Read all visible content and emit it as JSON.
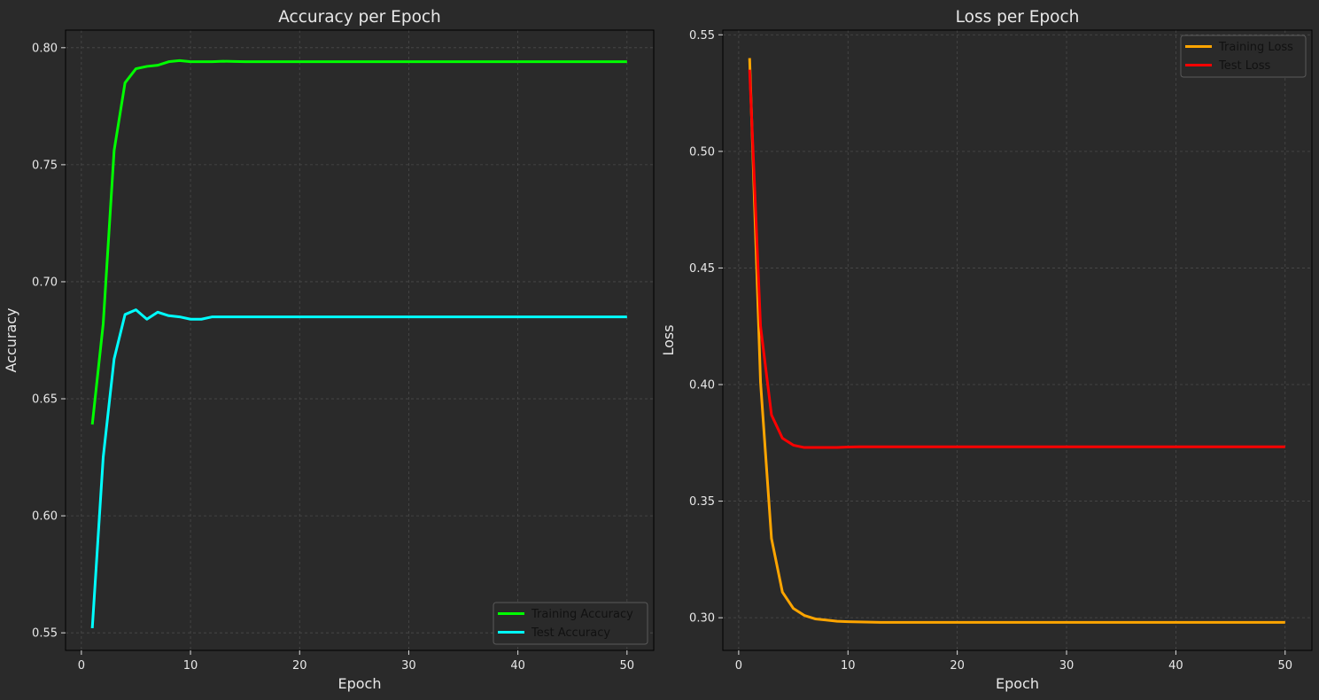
{
  "chart_data": [
    {
      "type": "line",
      "title": "Accuracy per Epoch",
      "xlabel": "Epoch",
      "ylabel": "Accuracy",
      "xlim": [
        -1.45,
        52.45
      ],
      "ylim": [
        0.5425,
        0.8075
      ],
      "xticks": [
        0,
        10,
        20,
        30,
        40,
        50
      ],
      "yticks": [
        0.55,
        0.6,
        0.65,
        0.7,
        0.75,
        0.8
      ],
      "ytick_labels": [
        "0.55",
        "0.60",
        "0.65",
        "0.70",
        "0.75",
        "0.80"
      ],
      "grid": true,
      "legend_position": "lower-right",
      "x": [
        1,
        2,
        3,
        4,
        5,
        6,
        7,
        8,
        9,
        10,
        11,
        12,
        13,
        14,
        15,
        16,
        17,
        18,
        19,
        20,
        21,
        22,
        23,
        24,
        25,
        26,
        27,
        28,
        29,
        30,
        31,
        32,
        33,
        34,
        35,
        36,
        37,
        38,
        39,
        40,
        41,
        42,
        43,
        44,
        45,
        46,
        47,
        48,
        49,
        50
      ],
      "series": [
        {
          "name": "Training Accuracy",
          "color": "#00ff00",
          "values": [
            0.639,
            0.682,
            0.756,
            0.785,
            0.791,
            0.792,
            0.7925,
            0.794,
            0.7945,
            0.794,
            0.794,
            0.794,
            0.7942,
            0.7941,
            0.794,
            0.794,
            0.794,
            0.794,
            0.794,
            0.794,
            0.794,
            0.794,
            0.794,
            0.794,
            0.794,
            0.794,
            0.794,
            0.794,
            0.794,
            0.794,
            0.794,
            0.794,
            0.794,
            0.794,
            0.794,
            0.794,
            0.794,
            0.794,
            0.794,
            0.794,
            0.794,
            0.794,
            0.794,
            0.794,
            0.794,
            0.794,
            0.794,
            0.794,
            0.794,
            0.794
          ]
        },
        {
          "name": "Test Accuracy",
          "color": "#00ffff",
          "values": [
            0.552,
            0.625,
            0.667,
            0.686,
            0.688,
            0.684,
            0.687,
            0.6855,
            0.685,
            0.684,
            0.684,
            0.685,
            0.685,
            0.685,
            0.685,
            0.685,
            0.685,
            0.685,
            0.685,
            0.685,
            0.685,
            0.685,
            0.685,
            0.685,
            0.685,
            0.685,
            0.685,
            0.685,
            0.685,
            0.685,
            0.685,
            0.685,
            0.685,
            0.685,
            0.685,
            0.685,
            0.685,
            0.685,
            0.685,
            0.685,
            0.685,
            0.685,
            0.685,
            0.685,
            0.685,
            0.685,
            0.685,
            0.685,
            0.685,
            0.685
          ]
        }
      ]
    },
    {
      "type": "line",
      "title": "Loss per Epoch",
      "xlabel": "Epoch",
      "ylabel": "Loss",
      "xlim": [
        -1.45,
        52.45
      ],
      "ylim": [
        0.286,
        0.552
      ],
      "xticks": [
        0,
        10,
        20,
        30,
        40,
        50
      ],
      "yticks": [
        0.3,
        0.35,
        0.4,
        0.45,
        0.5,
        0.55
      ],
      "ytick_labels": [
        "0.30",
        "0.35",
        "0.40",
        "0.45",
        "0.50",
        "0.55"
      ],
      "grid": true,
      "legend_position": "upper-right",
      "x": [
        1,
        2,
        3,
        4,
        5,
        6,
        7,
        8,
        9,
        10,
        11,
        12,
        13,
        14,
        15,
        16,
        17,
        18,
        19,
        20,
        21,
        22,
        23,
        24,
        25,
        26,
        27,
        28,
        29,
        30,
        31,
        32,
        33,
        34,
        35,
        36,
        37,
        38,
        39,
        40,
        41,
        42,
        43,
        44,
        45,
        46,
        47,
        48,
        49,
        50
      ],
      "series": [
        {
          "name": "Training Loss",
          "color": "#ffa500",
          "values": [
            0.54,
            0.401,
            0.334,
            0.311,
            0.304,
            0.301,
            0.2995,
            0.299,
            0.2985,
            0.2983,
            0.2982,
            0.2981,
            0.298,
            0.298,
            0.298,
            0.298,
            0.298,
            0.298,
            0.298,
            0.298,
            0.298,
            0.298,
            0.298,
            0.298,
            0.298,
            0.298,
            0.298,
            0.298,
            0.298,
            0.298,
            0.298,
            0.298,
            0.298,
            0.298,
            0.298,
            0.298,
            0.298,
            0.298,
            0.298,
            0.298,
            0.298,
            0.298,
            0.298,
            0.298,
            0.298,
            0.298,
            0.298,
            0.298,
            0.298,
            0.298
          ]
        },
        {
          "name": "Test Loss",
          "color": "#ff0000",
          "values": [
            0.535,
            0.425,
            0.387,
            0.377,
            0.374,
            0.373,
            0.373,
            0.373,
            0.373,
            0.3732,
            0.3733,
            0.3733,
            0.3733,
            0.3733,
            0.3733,
            0.3733,
            0.3733,
            0.3733,
            0.3733,
            0.3733,
            0.3733,
            0.3733,
            0.3733,
            0.3733,
            0.3733,
            0.3733,
            0.3733,
            0.3733,
            0.3733,
            0.3733,
            0.3733,
            0.3733,
            0.3733,
            0.3733,
            0.3733,
            0.3733,
            0.3733,
            0.3733,
            0.3733,
            0.3733,
            0.3733,
            0.3733,
            0.3733,
            0.3733,
            0.3733,
            0.3733,
            0.3733,
            0.3733,
            0.3733,
            0.3733
          ]
        }
      ]
    }
  ]
}
